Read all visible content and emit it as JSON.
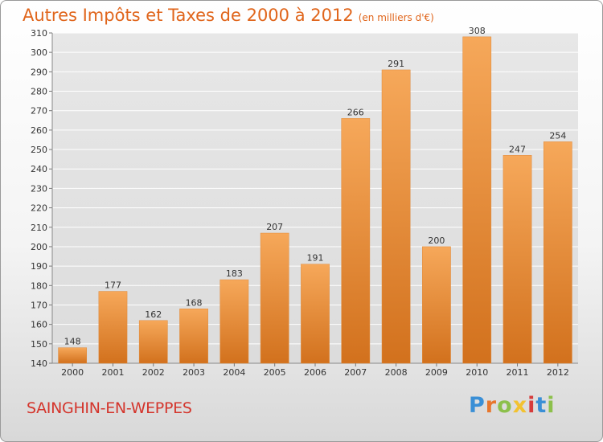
{
  "title": "Autres Impôts et Taxes de 2000 à 2012",
  "subtitle": "(en milliers d'€)",
  "location": "SAINGHIN-EN-WEPPES",
  "logo": {
    "letters": [
      "P",
      "r",
      "o",
      "x",
      "i",
      "t",
      "i"
    ],
    "colors": [
      "#3a8fd6",
      "#e8762c",
      "#8cc04b",
      "#f2c230",
      "#d63b3b",
      "#3a8fd6",
      "#8cc04b"
    ]
  },
  "colors": {
    "bar_top": "#f6a85a",
    "bar_bottom": "#d2711d",
    "title": "#e0651b",
    "location": "#d4352c"
  },
  "chart_data": {
    "type": "bar",
    "title": "Autres Impôts et Taxes de 2000 à 2012",
    "subtitle": "(en milliers d'€)",
    "categories": [
      "2000",
      "2001",
      "2002",
      "2003",
      "2004",
      "2005",
      "2006",
      "2007",
      "2008",
      "2009",
      "2010",
      "2011",
      "2012"
    ],
    "values": [
      148,
      177,
      162,
      168,
      183,
      207,
      191,
      266,
      291,
      200,
      308,
      247,
      254
    ],
    "ylim": [
      140,
      310
    ],
    "yticks": [
      140,
      150,
      160,
      170,
      180,
      190,
      200,
      210,
      220,
      230,
      240,
      250,
      260,
      270,
      280,
      290,
      300,
      310
    ],
    "grid": true,
    "data_labels": true
  }
}
